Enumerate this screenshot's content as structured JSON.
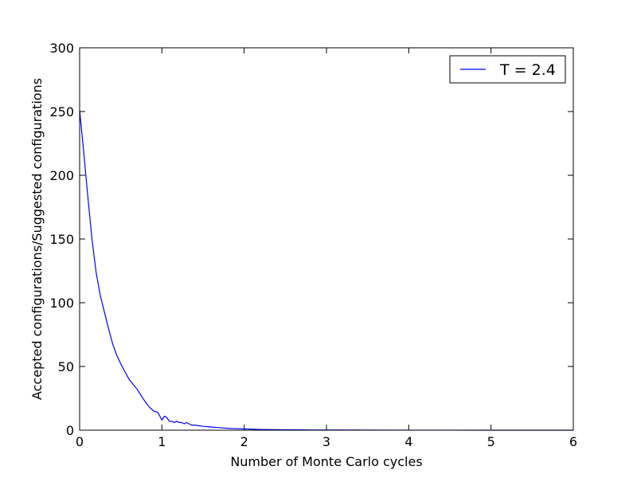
{
  "chart_data": {
    "type": "line",
    "title": "",
    "xlabel": "Number of Monte Carlo cycles",
    "ylabel": "Accepted configurations/Suggested configurations",
    "xlim": [
      0,
      6
    ],
    "ylim": [
      0,
      300
    ],
    "xticks": [
      "0",
      "1",
      "2",
      "3",
      "4",
      "5",
      "6"
    ],
    "yticks": [
      "0",
      "50",
      "100",
      "150",
      "200",
      "250",
      "300"
    ],
    "grid": false,
    "legend_position": "top-right",
    "series": [
      {
        "name": "T = 2.4",
        "color": "#0000ff",
        "x": [
          0,
          0.05,
          0.1,
          0.15,
          0.2,
          0.25,
          0.3,
          0.35,
          0.4,
          0.45,
          0.5,
          0.55,
          0.6,
          0.65,
          0.7,
          0.75,
          0.8,
          0.85,
          0.9,
          0.95,
          1.0,
          1.03,
          1.06,
          1.09,
          1.12,
          1.15,
          1.18,
          1.21,
          1.24,
          1.27,
          1.3,
          1.33,
          1.36,
          1.4,
          1.45,
          1.5,
          1.55,
          1.6,
          1.7,
          1.8,
          1.9,
          2.0,
          2.2,
          2.4,
          2.6,
          2.8,
          3.0,
          3.5,
          4.0,
          4.5,
          5.0,
          5.5,
          6.0
        ],
        "y": [
          251,
          218,
          183,
          150,
          124,
          106,
          93,
          80,
          68,
          59,
          52,
          46,
          40,
          36,
          32,
          27,
          22,
          18,
          15,
          14,
          8,
          11,
          10,
          7,
          7,
          6,
          7,
          6,
          6,
          5,
          6,
          5,
          4,
          4,
          3.5,
          3,
          2.8,
          2.5,
          2,
          1.5,
          1.2,
          1,
          0.6,
          0.4,
          0.3,
          0.2,
          0.15,
          0.1,
          0.05,
          0.03,
          0.02,
          0.01,
          0.01
        ]
      }
    ]
  }
}
